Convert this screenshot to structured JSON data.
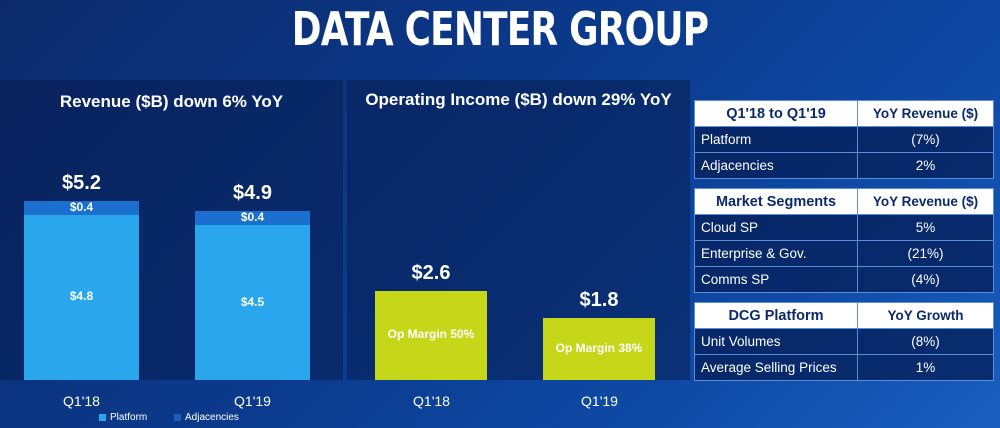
{
  "page": {
    "title": "DATA CENTER GROUP"
  },
  "colors": {
    "platform": "#29a6ec",
    "adjacencies": "#1b6fcf",
    "op_income": "#c6d619",
    "legend_adjacencies": "#1d5fb8"
  },
  "chart_data": [
    {
      "type": "bar",
      "title": "Revenue ($B) down 6% YoY",
      "categories": [
        "Q1'18",
        "Q1'19"
      ],
      "series": [
        {
          "name": "Platform",
          "values": [
            4.8,
            4.5
          ],
          "labels": [
            "$4.8",
            "$4.5"
          ]
        },
        {
          "name": "Adjacencies",
          "values": [
            0.4,
            0.4
          ],
          "labels": [
            "$0.4",
            "$0.4"
          ]
        }
      ],
      "totals": [
        "$5.2",
        "$4.9"
      ],
      "total_values": [
        5.2,
        4.9
      ],
      "ylim": [
        0,
        5.2
      ],
      "legend": [
        "Platform",
        "Adjacencies"
      ],
      "legend_position": "bottom"
    },
    {
      "type": "bar",
      "title": "Operating Income ($B) down 29% YoY",
      "categories": [
        "Q1'18",
        "Q1'19"
      ],
      "values": [
        2.6,
        1.8
      ],
      "value_labels": [
        "$2.6",
        "$1.8"
      ],
      "bar_labels": [
        "Op Margin 50%",
        "Op Margin 38%"
      ],
      "ylim": [
        0,
        5.2
      ]
    }
  ],
  "tables": [
    {
      "headers": [
        "Q1'18 to Q1'19",
        "YoY Revenue ($)"
      ],
      "rows": [
        [
          "Platform",
          "(7%)"
        ],
        [
          "Adjacencies",
          "2%"
        ]
      ]
    },
    {
      "headers": [
        "Market Segments",
        "YoY Revenue ($)"
      ],
      "rows": [
        [
          "Cloud SP",
          "5%"
        ],
        [
          "Enterprise & Gov.",
          "(21%)"
        ],
        [
          "Comms SP",
          "(4%)"
        ]
      ]
    },
    {
      "headers": [
        "DCG Platform",
        "YoY Growth"
      ],
      "rows": [
        [
          "Unit Volumes",
          "(8%)"
        ],
        [
          "Average Selling Prices",
          "1%"
        ]
      ]
    }
  ]
}
